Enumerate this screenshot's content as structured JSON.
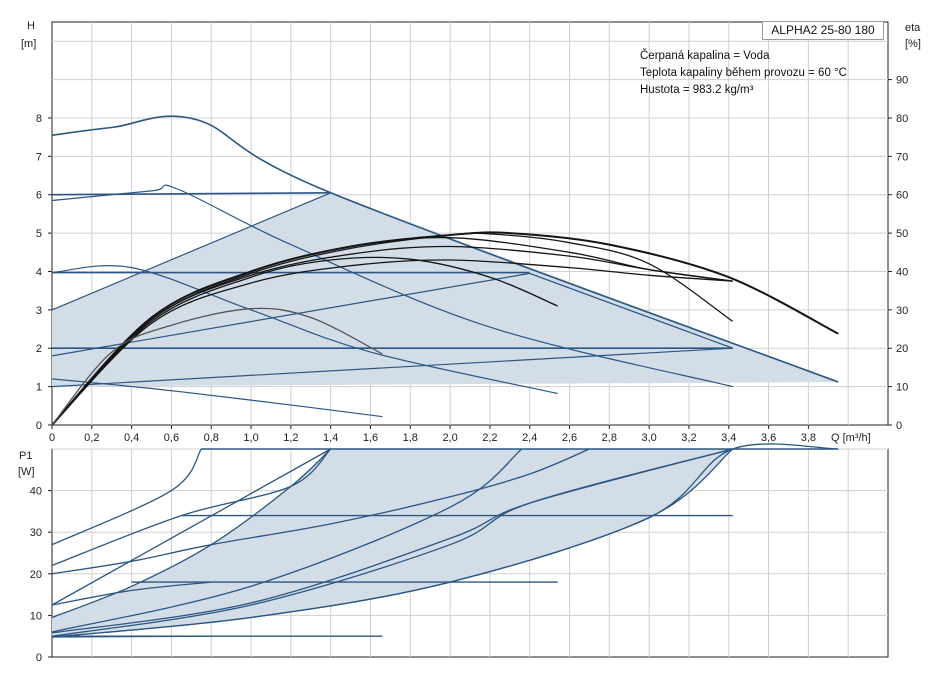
{
  "chart_data": {
    "type": "line",
    "model": "ALPHA2 25-80 180",
    "info": [
      "Čerpaná kapalina = Voda",
      "Teplota kapaliny během provozu = 60 °C",
      "Hustota = 983.2 kg/m³"
    ],
    "head_chart": {
      "ylabel_left": [
        "H",
        "[m]"
      ],
      "ylabel_right": [
        "eta",
        "[%]"
      ],
      "xlabel": "Q [m³/h]",
      "xlim": [
        0,
        4.2
      ],
      "ylim": [
        0,
        10.5
      ],
      "xticks": [
        "0",
        "0,2",
        "0,4",
        "0,6",
        "0,8",
        "1,0",
        "1,2",
        "1,4",
        "1,6",
        "1,8",
        "2,0",
        "2,2",
        "2,4",
        "2,6",
        "2,8",
        "3,0",
        "3,2",
        "3,4",
        "3,6",
        "3,8"
      ],
      "yticks_left": [
        "0",
        "1",
        "2",
        "3",
        "4",
        "5",
        "6",
        "7",
        "8"
      ],
      "yticks_right": [
        "0",
        "10",
        "20",
        "30",
        "40",
        "50",
        "60",
        "70",
        "80",
        "90"
      ],
      "operating_area": [
        [
          0,
          1.0
        ],
        [
          0,
          3.0
        ],
        [
          1.4,
          6.05
        ],
        [
          3.95,
          1.12
        ]
      ],
      "pump_curves": [
        {
          "name": "max",
          "points": [
            [
              0,
              7.55
            ],
            [
              0.3,
              7.75
            ],
            [
              0.73,
              7.95
            ],
            [
              1.4,
              6.05
            ],
            [
              3.95,
              1.12
            ]
          ]
        },
        {
          "name": "pp_high",
          "points": [
            [
              0,
              3.0
            ],
            [
              1.4,
              6.05
            ]
          ]
        },
        {
          "name": "pp_mid",
          "points": [
            [
              0,
              1.8
            ],
            [
              2.4,
              3.95
            ],
            [
              3.42,
              2.0
            ]
          ]
        },
        {
          "name": "pp_low",
          "points": [
            [
              0,
              1.0
            ],
            [
              3.42,
              2.0
            ]
          ]
        },
        {
          "name": "cp_6",
          "points": [
            [
              0,
              6.0
            ],
            [
              1.4,
              6.05
            ]
          ]
        },
        {
          "name": "cp_4",
          "points": [
            [
              0,
              3.97
            ],
            [
              2.4,
              3.97
            ]
          ]
        },
        {
          "name": "cp_2",
          "points": [
            [
              0,
              2.0
            ],
            [
              3.42,
              2.0
            ]
          ]
        },
        {
          "name": "speed_2",
          "points": [
            [
              0,
              5.85
            ],
            [
              0.5,
              6.1
            ],
            [
              0.63,
              6.15
            ],
            [
              1.2,
              4.7
            ],
            [
              2.2,
              2.55
            ],
            [
              3.42,
              1.0
            ]
          ]
        },
        {
          "name": "speed_3",
          "points": [
            [
              0,
              3.97
            ],
            [
              0.4,
              4.1
            ],
            [
              1.0,
              3.0
            ],
            [
              1.6,
              1.9
            ],
            [
              2.54,
              0.82
            ]
          ]
        },
        {
          "name": "speed_1",
          "points": [
            [
              0,
              1.2
            ],
            [
              0.5,
              0.95
            ],
            [
              1.0,
              0.65
            ],
            [
              1.66,
              0.22
            ]
          ]
        }
      ],
      "efficiency_curves": [
        {
          "name": "eta_max",
          "points": [
            [
              0,
              0
            ],
            [
              0.5,
              28
            ],
            [
              1.0,
              40
            ],
            [
              1.5,
              46.5
            ],
            [
              2.0,
              49.5
            ],
            [
              2.3,
              50
            ],
            [
              2.8,
              47
            ],
            [
              3.4,
              38.5
            ],
            [
              3.95,
              23.8
            ]
          ]
        },
        {
          "name": "eta_a",
          "points": [
            [
              0,
              0
            ],
            [
              0.5,
              27.5
            ],
            [
              1.0,
              39.5
            ],
            [
              1.5,
              46
            ],
            [
              2.0,
              49.5
            ],
            [
              2.2,
              49.8
            ],
            [
              2.6,
              47.5
            ],
            [
              3.0,
              42
            ],
            [
              3.42,
              27
            ]
          ]
        },
        {
          "name": "eta_b",
          "points": [
            [
              0,
              0
            ],
            [
              0.5,
              27
            ],
            [
              1.0,
              38.5
            ],
            [
              1.4,
              43
            ],
            [
              1.8,
              43.2
            ],
            [
              2.2,
              38.5
            ],
            [
              2.54,
              31
            ]
          ]
        },
        {
          "name": "eta_c",
          "points": [
            [
              0,
              0
            ],
            [
              0.5,
              27.5
            ],
            [
              1.0,
              39
            ],
            [
              1.5,
              44.5
            ],
            [
              2.0,
              46.5
            ],
            [
              2.6,
              44
            ],
            [
              3.0,
              40.5
            ],
            [
              3.42,
              37.5
            ]
          ]
        },
        {
          "name": "eta_d",
          "points": [
            [
              0,
              0
            ],
            [
              0.5,
              28
            ],
            [
              1.0,
              40
            ],
            [
              1.5,
              46.5
            ],
            [
              2.0,
              48.8
            ],
            [
              2.6,
              45
            ],
            [
              3.0,
              40.5
            ],
            [
              3.42,
              37.5
            ]
          ]
        },
        {
          "name": "eta_e",
          "points": [
            [
              0,
              0
            ],
            [
              0.5,
              26.5
            ],
            [
              1.0,
              37
            ],
            [
              1.5,
              41.5
            ],
            [
              2.0,
              43
            ],
            [
              2.6,
              41
            ],
            [
              3.0,
              39
            ],
            [
              3.42,
              37.5
            ]
          ]
        },
        {
          "name": "eta_f",
          "points": [
            [
              0,
              0
            ],
            [
              0.3,
              19
            ],
            [
              0.6,
              26
            ],
            [
              1.0,
              30.3
            ],
            [
              1.3,
              28
            ],
            [
              1.66,
              18.5
            ]
          ]
        }
      ]
    },
    "power_chart": {
      "ylabel_left": [
        "P1",
        "[W]"
      ],
      "xlim": [
        0,
        4.2
      ],
      "ylim": [
        0,
        50
      ],
      "yticks_left": [
        "0",
        "10",
        "20",
        "30",
        "40"
      ],
      "operating_area": [
        [
          0,
          4.8
        ],
        [
          0,
          9.5
        ],
        [
          1.4,
          50
        ],
        [
          3.95,
          50
        ]
      ],
      "power_curves": [
        {
          "name": "max",
          "points": [
            [
              0,
              4.8
            ],
            [
              1.0,
              9.5
            ],
            [
              2.0,
              18
            ],
            [
              3.0,
              33.5
            ],
            [
              3.42,
              50
            ],
            [
              3.95,
              50
            ]
          ]
        },
        {
          "name": "pp_high",
          "points": [
            [
              0,
              9.5
            ],
            [
              0.4,
              17
            ],
            [
              0.8,
              27
            ],
            [
              1.2,
              41
            ],
            [
              1.4,
              50
            ]
          ]
        },
        {
          "name": "pp_mid",
          "points": [
            [
              0,
              5.8
            ],
            [
              1.0,
              13
            ],
            [
              2.0,
              28.5
            ],
            [
              2.4,
              37
            ],
            [
              3.42,
              50
            ]
          ]
        },
        {
          "name": "pp_low",
          "points": [
            [
              0,
              4.8
            ],
            [
              1.0,
              9.5
            ],
            [
              2.0,
              18
            ],
            [
              3.0,
              33.5
            ],
            [
              3.42,
              50
            ]
          ]
        },
        {
          "name": "cp_6",
          "points": [
            [
              0,
              12.5
            ],
            [
              1.4,
              50
            ]
          ]
        },
        {
          "name": "cp_4",
          "points": [
            [
              0,
              6.0
            ],
            [
              1.0,
              17
            ],
            [
              2.0,
              36
            ],
            [
              2.36,
              50
            ]
          ]
        },
        {
          "name": "cp_2",
          "points": [
            [
              0,
              5.0
            ],
            [
              1.0,
              12.5
            ],
            [
              2.0,
              27
            ],
            [
              2.4,
              37
            ],
            [
              3.42,
              50
            ]
          ]
        },
        {
          "name": "speed_2",
          "points": [
            [
              0,
              20
            ],
            [
              0.4,
              23
            ],
            [
              0.8,
              27
            ],
            [
              1.4,
              32
            ],
            [
              2.0,
              38.5
            ],
            [
              2.4,
              44
            ],
            [
              2.7,
              50
            ]
          ]
        },
        {
          "name": "speed_3",
          "points": [
            [
              0,
              12.5
            ],
            [
              0.4,
              16
            ],
            [
              0.8,
              18
            ]
          ]
        },
        {
          "name": "speed_1",
          "points": [
            [
              0,
              4.8
            ],
            [
              0.8,
              5.0
            ]
          ]
        },
        {
          "name": "rise_a",
          "points": [
            [
              0,
              27
            ],
            [
              0.6,
              40
            ],
            [
              0.75,
              50
            ]
          ]
        },
        {
          "name": "rise_b",
          "points": [
            [
              0,
              22
            ],
            [
              0.65,
              34
            ],
            [
              1.2,
              41
            ],
            [
              1.4,
              50
            ]
          ]
        },
        {
          "name": "h_50",
          "points": [
            [
              0.75,
              50
            ],
            [
              3.95,
              50
            ]
          ]
        },
        {
          "name": "h_34",
          "points": [
            [
              0.65,
              34
            ],
            [
              3.42,
              34
            ]
          ]
        },
        {
          "name": "h_18",
          "points": [
            [
              0.4,
              18
            ],
            [
              2.54,
              18
            ]
          ]
        },
        {
          "name": "h_5",
          "points": [
            [
              0,
              5.0
            ],
            [
              1.66,
              5.0
            ]
          ]
        }
      ]
    }
  }
}
